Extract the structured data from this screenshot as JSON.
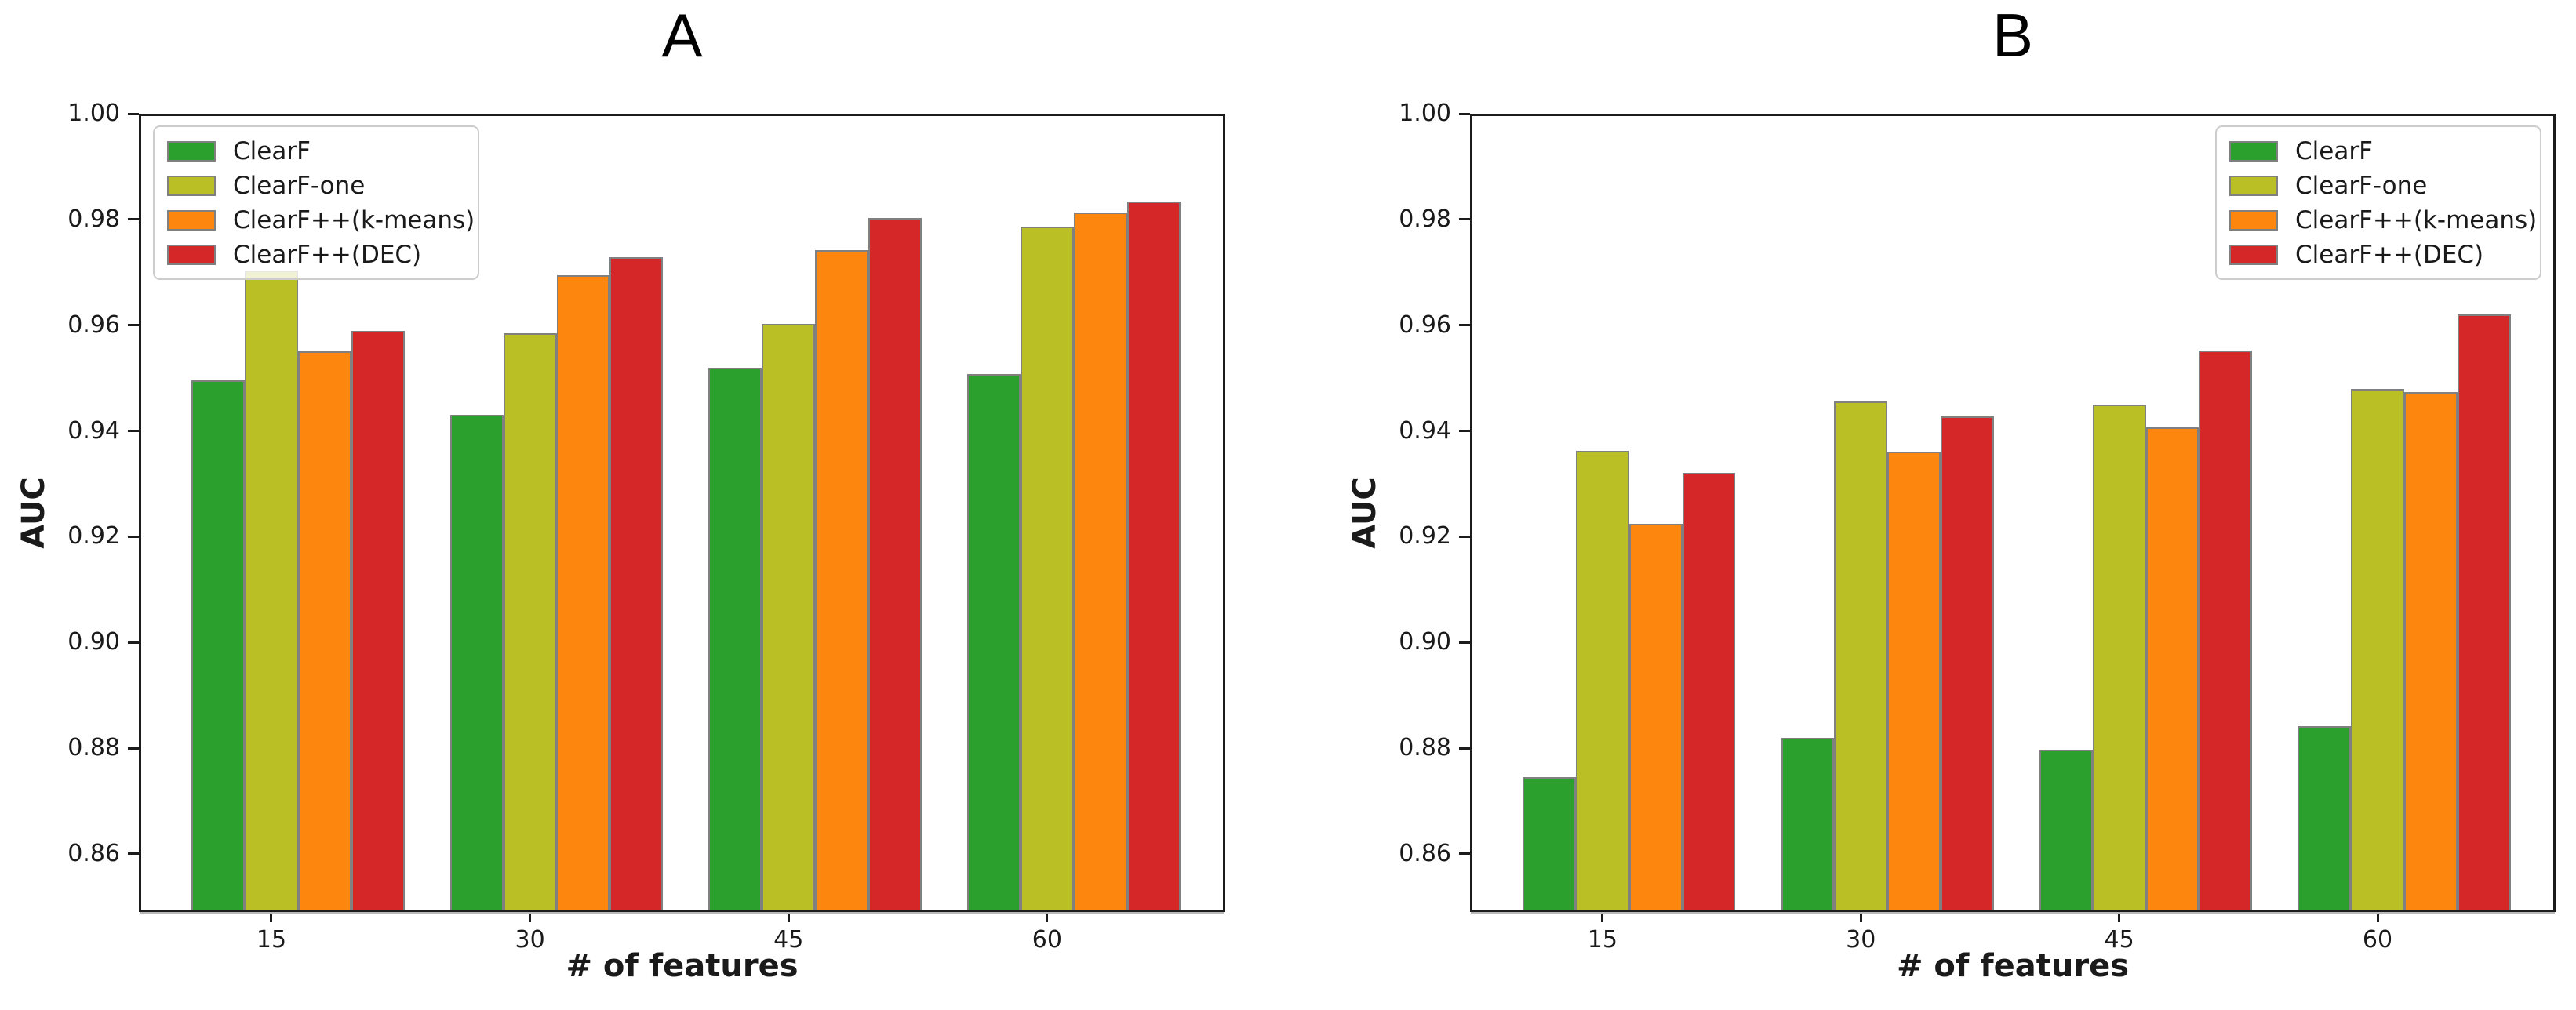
{
  "figure": {
    "background": "#ffffff"
  },
  "chart_data": [
    {
      "type": "bar",
      "title": "A",
      "xlabel": "# of features",
      "ylabel": "AUC",
      "categories": [
        "15",
        "30",
        "45",
        "60"
      ],
      "series": [
        {
          "name": "ClearF",
          "color": "#2ca02c",
          "values": [
            0.9495,
            0.943,
            0.952,
            0.9508
          ]
        },
        {
          "name": "ClearF-one",
          "color": "#bbbf26",
          "values": [
            0.9703,
            0.9585,
            0.9603,
            0.9787
          ]
        },
        {
          "name": "ClearF++(k-means)",
          "color": "#fd860e",
          "values": [
            0.9551,
            0.9694,
            0.9742,
            0.9813
          ]
        },
        {
          "name": "ClearF++(DEC)",
          "color": "#d62728",
          "values": [
            0.9589,
            0.9729,
            0.9803,
            0.9834
          ]
        }
      ],
      "ylim": [
        0.849,
        1.0
      ],
      "yticks": [
        "0.86",
        "0.88",
        "0.90",
        "0.92",
        "0.94",
        "0.96",
        "0.98",
        "1.00"
      ],
      "legend": {
        "position": "upper-left"
      },
      "grid": false
    },
    {
      "type": "bar",
      "title": "B",
      "xlabel": "# of features",
      "ylabel": "AUC",
      "categories": [
        "15",
        "30",
        "45",
        "60"
      ],
      "series": [
        {
          "name": "ClearF",
          "color": "#2ca02c",
          "values": [
            0.8745,
            0.882,
            0.8797,
            0.8842
          ]
        },
        {
          "name": "ClearF-one",
          "color": "#bbbf26",
          "values": [
            0.9362,
            0.9455,
            0.945,
            0.9479
          ]
        },
        {
          "name": "ClearF++(k-means)",
          "color": "#fd860e",
          "values": [
            0.9224,
            0.936,
            0.9406,
            0.9473
          ]
        },
        {
          "name": "ClearF++(DEC)",
          "color": "#d62728",
          "values": [
            0.9321,
            0.9428,
            0.9552,
            0.9621
          ]
        }
      ],
      "ylim": [
        0.849,
        1.0
      ],
      "yticks": [
        "0.86",
        "0.88",
        "0.90",
        "0.92",
        "0.94",
        "0.96",
        "0.98",
        "1.00"
      ],
      "legend": {
        "position": "upper-right"
      },
      "grid": false
    }
  ],
  "styles": {
    "bar_edge": "#808080",
    "axis_color": "#1c1c1c",
    "text_color": "#1a1a1a",
    "legend_border": "#cccccc"
  }
}
